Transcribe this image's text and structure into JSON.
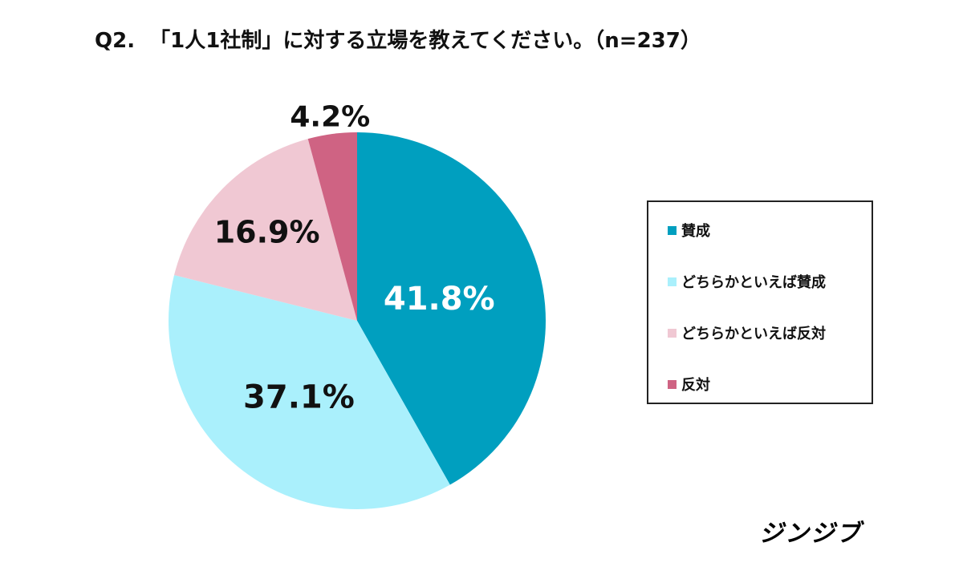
{
  "title": "Q2.  「1人1社制」に対する立場を教えてください。（n=237）",
  "chart_data": {
    "type": "pie",
    "title": "Q2.  「1人1社制」に対する立場を教えてください。（n=237）",
    "start": "top",
    "direction": "clockwise",
    "legend_position": "right",
    "slices": [
      {
        "label": "賛成",
        "value": 41.8,
        "display": "41.8%",
        "color": "#009FBF",
        "label_color": "#ffffff"
      },
      {
        "label": "どちらかといえば賛成",
        "value": 37.1,
        "display": "37.1%",
        "color": "#AAF0FC",
        "label_color": "#111111"
      },
      {
        "label": "どちらかといえば反対",
        "value": 16.9,
        "display": "16.9%",
        "color": "#F0C8D3",
        "label_color": "#111111"
      },
      {
        "label": "反対",
        "value": 4.2,
        "display": "4.2%",
        "color": "#CF6383",
        "label_color": "#111111"
      }
    ]
  },
  "logo": "ジンジブ"
}
